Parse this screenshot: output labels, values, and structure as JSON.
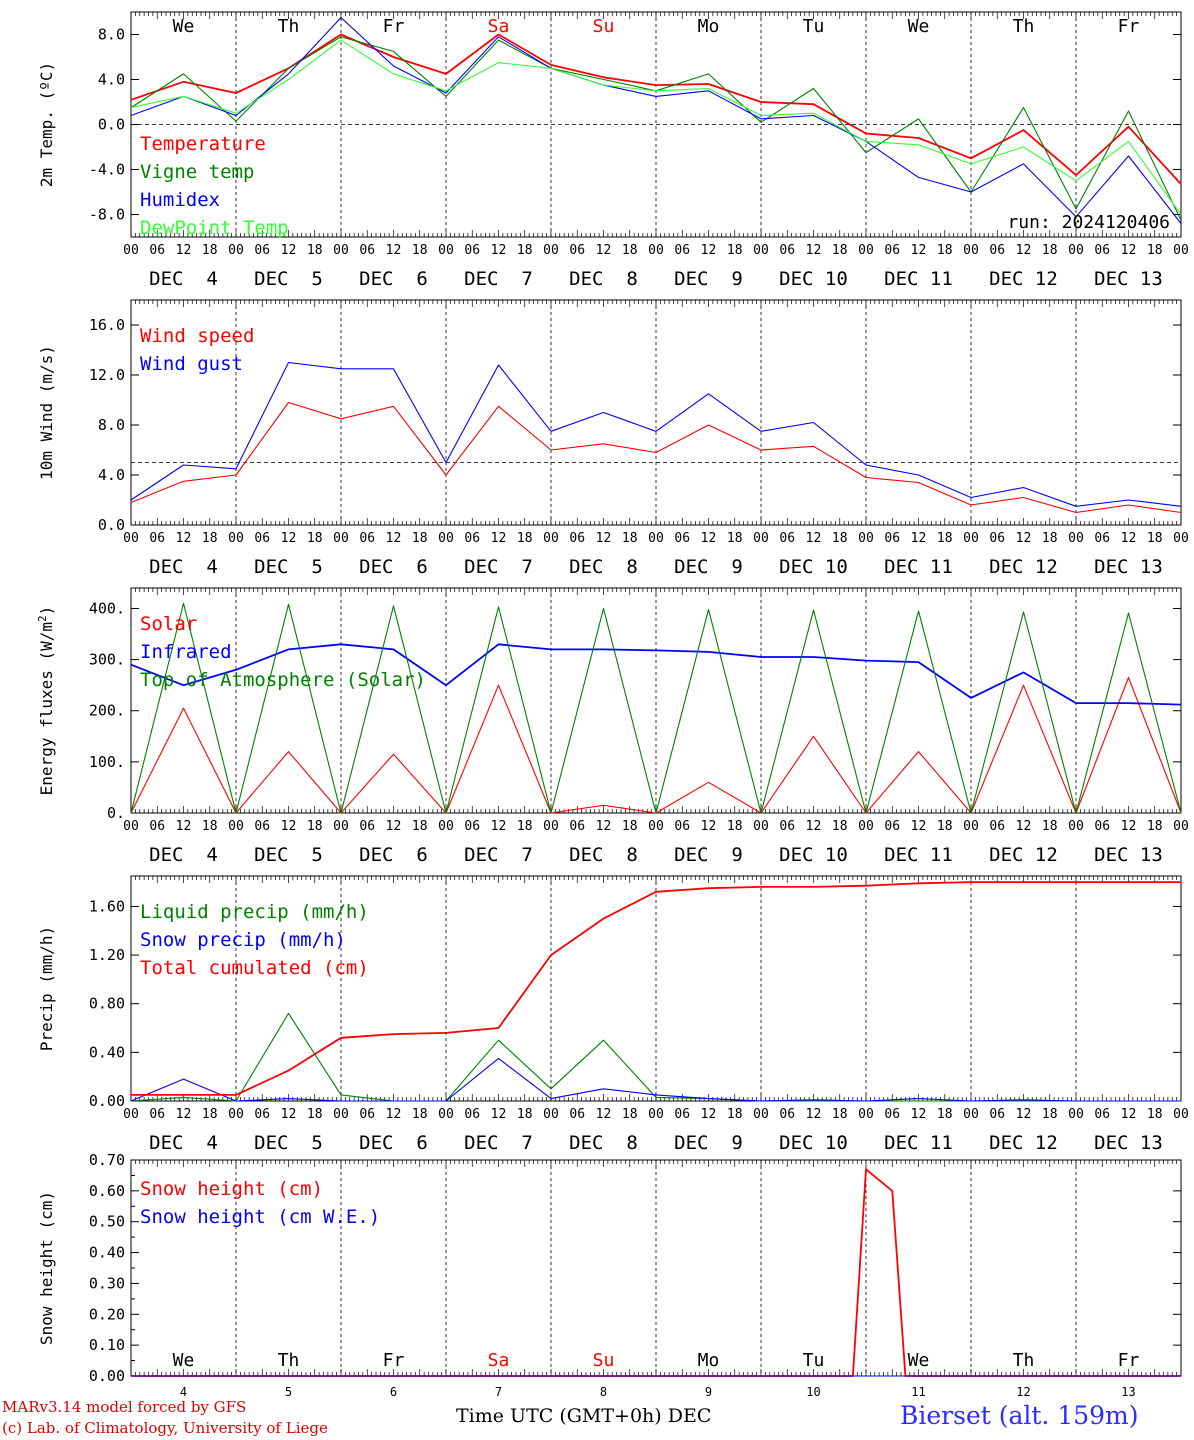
{
  "footer": {
    "credit_line1": "MARv3.14 model forced by GFS",
    "credit_line2": "(c) Lab. of Climatology, University of Liege",
    "x_axis_title": "Time UTC (GMT+0h) DEC",
    "station": "Bierset (alt. 159m)"
  },
  "run_label": "run: 2024120406",
  "weekday_labels": [
    "We",
    "Th",
    "Fr",
    "Sa",
    "Su",
    "Mo",
    "Tu",
    "We",
    "Th",
    "Fr"
  ],
  "weekend_days": [
    "Sa",
    "Su"
  ],
  "date_labels": [
    "DEC  4",
    "DEC  5",
    "DEC  6",
    "DEC  7",
    "DEC  8",
    "DEC  9",
    "DEC 10",
    "DEC 11",
    "DEC 12",
    "DEC 13"
  ],
  "bottom_day_numbers": [
    "4",
    "5",
    "6",
    "7",
    "8",
    "9",
    "10",
    "11",
    "12",
    "13"
  ],
  "hour_tick_labels": [
    "00",
    "06",
    "12",
    "18"
  ],
  "final_hour_label": "00",
  "colors": {
    "red": "#ff0000",
    "green": "#008000",
    "blue": "#0000ff",
    "lightgreen": "#33ff33",
    "station": "#2b2bff"
  },
  "chart_data": [
    {
      "type": "line",
      "ylabel": "2m Temp. (ºC)",
      "ylim": [
        -10,
        10
      ],
      "yticks": [
        -8,
        -4,
        0,
        4,
        8
      ],
      "ytick_labels": [
        "-8.0",
        "-4.0",
        "0.0",
        "4.0",
        "8.0"
      ],
      "reference_line": 0,
      "x": [
        "2024-12-04 00",
        "2024-12-04 12",
        "2024-12-05 00",
        "2024-12-05 12",
        "2024-12-06 00",
        "2024-12-06 12",
        "2024-12-07 00",
        "2024-12-07 12",
        "2024-12-08 00",
        "2024-12-08 12",
        "2024-12-09 00",
        "2024-12-09 12",
        "2024-12-10 00",
        "2024-12-10 12",
        "2024-12-11 00",
        "2024-12-11 12",
        "2024-12-12 00",
        "2024-12-12 12",
        "2024-12-13 00",
        "2024-12-13 12",
        "2024-12-14 00"
      ],
      "series": [
        {
          "name": "Temperature",
          "color": "#ff0000",
          "values": [
            2.2,
            3.8,
            2.8,
            5.0,
            8.0,
            6.0,
            4.5,
            8.0,
            5.3,
            4.2,
            3.5,
            3.6,
            2.0,
            1.8,
            -0.8,
            -1.2,
            -3.0,
            -0.5,
            -4.5,
            -0.2,
            -5.3
          ]
        },
        {
          "name": "Vigne temp",
          "color": "#008000",
          "values": [
            1.5,
            4.5,
            0.3,
            5.0,
            7.8,
            6.5,
            2.5,
            7.5,
            5.0,
            4.0,
            3.0,
            4.5,
            0.2,
            3.2,
            -2.5,
            0.5,
            -6.0,
            1.5,
            -7.5,
            1.2,
            -8.5
          ]
        },
        {
          "name": "Humidex",
          "color": "#0000ff",
          "values": [
            0.8,
            2.5,
            0.8,
            4.5,
            9.5,
            5.2,
            2.8,
            7.8,
            5.0,
            3.5,
            2.5,
            3.0,
            0.5,
            0.8,
            -1.5,
            -4.7,
            -6.0,
            -3.5,
            -8.2,
            -2.8,
            -8.8
          ]
        },
        {
          "name": "DewPoint Temp",
          "color": "#33ff33",
          "values": [
            1.5,
            2.5,
            1.0,
            4.0,
            7.5,
            4.5,
            3.0,
            5.5,
            5.0,
            3.5,
            3.0,
            3.2,
            0.8,
            1.0,
            -1.5,
            -1.8,
            -3.5,
            -2.0,
            -5.0,
            -1.5,
            -8.0
          ]
        }
      ]
    },
    {
      "type": "line",
      "ylabel": "10m Wind (m/s)",
      "ylim": [
        0,
        18
      ],
      "yticks": [
        0,
        4,
        8,
        12,
        16
      ],
      "ytick_labels": [
        "0.0",
        "4.0",
        "8.0",
        "12.0",
        "16.0"
      ],
      "reference_line": 5,
      "x": [
        "2024-12-04 00",
        "2024-12-04 12",
        "2024-12-05 00",
        "2024-12-05 12",
        "2024-12-06 00",
        "2024-12-06 12",
        "2024-12-07 00",
        "2024-12-07 12",
        "2024-12-08 00",
        "2024-12-08 12",
        "2024-12-09 00",
        "2024-12-09 12",
        "2024-12-10 00",
        "2024-12-10 12",
        "2024-12-11 00",
        "2024-12-11 12",
        "2024-12-12 00",
        "2024-12-12 12",
        "2024-12-13 00",
        "2024-12-13 12",
        "2024-12-14 00"
      ],
      "series": [
        {
          "name": "Wind speed",
          "color": "#ff0000",
          "values": [
            1.8,
            3.5,
            4.0,
            9.8,
            8.5,
            9.5,
            4.0,
            9.5,
            6.0,
            6.5,
            5.8,
            8.0,
            6.0,
            6.3,
            3.8,
            3.4,
            1.6,
            2.2,
            1.0,
            1.6,
            1.0
          ]
        },
        {
          "name": "Wind gust",
          "color": "#0000ff",
          "values": [
            2.0,
            4.8,
            4.5,
            13.0,
            12.5,
            12.5,
            5.0,
            12.8,
            7.5,
            9.0,
            7.5,
            10.5,
            7.5,
            8.2,
            4.8,
            4.0,
            2.2,
            3.0,
            1.5,
            2.0,
            1.5
          ]
        }
      ]
    },
    {
      "type": "line",
      "ylabel": "Energy fluxes (W/m²)",
      "ylim": [
        0,
        440
      ],
      "yticks": [
        0,
        100,
        200,
        300,
        400
      ],
      "ytick_labels": [
        "0.",
        "100.",
        "200.",
        "300.",
        "400."
      ],
      "x": [
        "2024-12-04 00",
        "2024-12-04 12",
        "2024-12-05 00",
        "2024-12-05 12",
        "2024-12-06 00",
        "2024-12-06 12",
        "2024-12-07 00",
        "2024-12-07 12",
        "2024-12-08 00",
        "2024-12-08 12",
        "2024-12-09 00",
        "2024-12-09 12",
        "2024-12-10 00",
        "2024-12-10 12",
        "2024-12-11 00",
        "2024-12-11 12",
        "2024-12-12 00",
        "2024-12-12 12",
        "2024-12-13 00",
        "2024-12-13 12",
        "2024-12-14 00"
      ],
      "series": [
        {
          "name": "Solar",
          "color": "#ff0000",
          "values": [
            0,
            205,
            0,
            120,
            0,
            115,
            0,
            250,
            0,
            15,
            0,
            60,
            0,
            150,
            0,
            120,
            0,
            250,
            0,
            265,
            0
          ]
        },
        {
          "name": "Infrared",
          "color": "#0000ff",
          "values": [
            290,
            250,
            280,
            320,
            330,
            320,
            250,
            330,
            320,
            320,
            318,
            315,
            305,
            305,
            298,
            295,
            225,
            275,
            215,
            215,
            212
          ]
        },
        {
          "name": "Top of Atmosphere (Solar)",
          "color": "#008000",
          "values": [
            0,
            410,
            0,
            408,
            0,
            405,
            0,
            403,
            0,
            400,
            0,
            398,
            0,
            397,
            0,
            395,
            0,
            393,
            0,
            391,
            0
          ]
        }
      ]
    },
    {
      "type": "line",
      "ylabel": "Precip (mm/h)",
      "ylim": [
        0,
        1.85
      ],
      "yticks": [
        0,
        0.4,
        0.8,
        1.2,
        1.6
      ],
      "ytick_labels": [
        "0.00",
        "0.40",
        "0.80",
        "1.20",
        "1.60"
      ],
      "x": [
        "2024-12-04 00",
        "2024-12-04 12",
        "2024-12-05 00",
        "2024-12-05 12",
        "2024-12-06 00",
        "2024-12-06 12",
        "2024-12-07 00",
        "2024-12-07 12",
        "2024-12-08 00",
        "2024-12-08 12",
        "2024-12-09 00",
        "2024-12-09 12",
        "2024-12-10 00",
        "2024-12-10 12",
        "2024-12-11 00",
        "2024-12-11 12",
        "2024-12-12 00",
        "2024-12-12 12",
        "2024-12-13 00",
        "2024-12-13 12",
        "2024-12-14 00"
      ],
      "series": [
        {
          "name": "Liquid precip (mm/h)",
          "color": "#008000",
          "values": [
            0,
            0.03,
            0,
            0.72,
            0.05,
            0,
            0,
            0.5,
            0.1,
            0.5,
            0.03,
            0.02,
            0,
            0,
            0,
            0,
            0,
            0,
            0,
            0,
            0
          ]
        },
        {
          "name": "Snow precip (mm/h)",
          "color": "#0000ff",
          "values": [
            0,
            0.18,
            0,
            0.02,
            0,
            0,
            0,
            0.35,
            0.02,
            0.1,
            0.05,
            0.02,
            0,
            0.01,
            0,
            0.02,
            0,
            0.01,
            0,
            0,
            0
          ]
        },
        {
          "name": "Total cumulated (cm)",
          "color": "#ff0000",
          "values": [
            0.05,
            0.05,
            0.05,
            0.25,
            0.52,
            0.55,
            0.56,
            0.6,
            1.2,
            1.5,
            1.72,
            1.75,
            1.76,
            1.76,
            1.77,
            1.79,
            1.8,
            1.8,
            1.8,
            1.8,
            1.8
          ]
        }
      ]
    },
    {
      "type": "line",
      "ylabel": "Snow height (cm)",
      "ylim": [
        0,
        0.7
      ],
      "yticks": [
        0,
        0.1,
        0.2,
        0.3,
        0.4,
        0.5,
        0.6,
        0.7
      ],
      "ytick_labels": [
        "0.00",
        "0.10",
        "0.20",
        "0.30",
        "0.40",
        "0.50",
        "0.60",
        "0.70"
      ],
      "x": [
        "2024-12-04 00",
        "2024-12-10 21",
        "2024-12-11 00",
        "2024-12-11 06",
        "2024-12-11 09",
        "2024-12-14 00"
      ],
      "series": [
        {
          "name": "Snow height (cm)",
          "color": "#ff0000",
          "values": [
            0,
            0,
            0.67,
            0.6,
            0,
            0
          ]
        },
        {
          "name": "Snow height (cm W.E.)",
          "color": "#0000ff",
          "values": [
            0,
            0,
            0,
            0,
            0,
            0
          ]
        }
      ]
    }
  ]
}
